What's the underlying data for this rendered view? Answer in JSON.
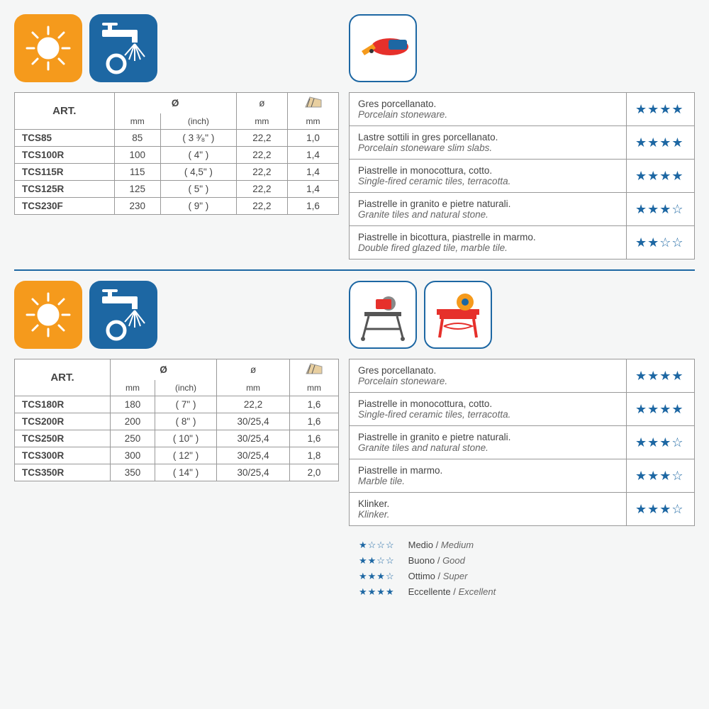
{
  "colors": {
    "orange": "#f59a1c",
    "blue": "#1d67a3",
    "border": "#999999",
    "bg": "#f5f6f6",
    "text": "#555555",
    "star": "#1d67a3"
  },
  "icons": {
    "sun": "sun-icon",
    "faucet": "faucet-wheel-icon",
    "grinder": "angle-grinder-icon",
    "table_saw": "table-saw-icon",
    "bench_saw": "bench-saw-icon"
  },
  "headers": {
    "art": "ART.",
    "diam_large": "Ø",
    "diam_small": "ø",
    "mm": "mm",
    "inch": "(inch)"
  },
  "section1": {
    "specs": [
      {
        "art": "TCS85",
        "mm": "85",
        "inch": "( 3 ³⁄₈\" )",
        "bore": "22,2",
        "thick": "1,0"
      },
      {
        "art": "TCS100R",
        "mm": "100",
        "inch": "(  4\"  )",
        "bore": "22,2",
        "thick": "1,4"
      },
      {
        "art": "TCS115R",
        "mm": "115",
        "inch": "( 4,5\" )",
        "bore": "22,2",
        "thick": "1,4"
      },
      {
        "art": "TCS125R",
        "mm": "125",
        "inch": "(  5\"  )",
        "bore": "22,2",
        "thick": "1,4"
      },
      {
        "art": "TCS230F",
        "mm": "230",
        "inch": "(  9\"  )",
        "bore": "22,2",
        "thick": "1,6"
      }
    ],
    "ratings": [
      {
        "it": "Gres porcellanato.",
        "en": "Porcelain stoneware.",
        "stars": 4
      },
      {
        "it": "Lastre sottili in gres porcellanato.",
        "en": "Porcelain stoneware slim slabs.",
        "stars": 4
      },
      {
        "it": "Piastrelle in monocottura, cotto.",
        "en": "Single-fired ceramic tiles, terracotta.",
        "stars": 4
      },
      {
        "it": "Piastrelle in granito e pietre naturali.",
        "en": "Granite tiles and natural stone.",
        "stars": 3
      },
      {
        "it": "Piastrelle in bicottura, piastrelle in marmo.",
        "en": "Double fired glazed tile, marble tile.",
        "stars": 2
      }
    ]
  },
  "section2": {
    "specs": [
      {
        "art": "TCS180R",
        "mm": "180",
        "inch": "(  7\"  )",
        "bore": "22,2",
        "thick": "1,6"
      },
      {
        "art": "TCS200R",
        "mm": "200",
        "inch": "(  8\"  )",
        "bore": "30/25,4",
        "thick": "1,6"
      },
      {
        "art": "TCS250R",
        "mm": "250",
        "inch": "( 10\" )",
        "bore": "30/25,4",
        "thick": "1,6"
      },
      {
        "art": "TCS300R",
        "mm": "300",
        "inch": "( 12\" )",
        "bore": "30/25,4",
        "thick": "1,8"
      },
      {
        "art": "TCS350R",
        "mm": "350",
        "inch": "( 14\" )",
        "bore": "30/25,4",
        "thick": "2,0"
      }
    ],
    "ratings": [
      {
        "it": "Gres porcellanato.",
        "en": "Porcelain stoneware.",
        "stars": 4
      },
      {
        "it": "Piastrelle in monocottura, cotto.",
        "en": "Single-fired ceramic tiles, terracotta.",
        "stars": 4
      },
      {
        "it": "Piastrelle in granito e pietre naturali.",
        "en": "Granite tiles and natural stone.",
        "stars": 3
      },
      {
        "it": "Piastrelle in marmo.",
        "en": "Marble tile.",
        "stars": 3
      },
      {
        "it": "Klinker.",
        "en": "Klinker.",
        "stars": 3
      }
    ]
  },
  "legend": [
    {
      "stars": 1,
      "it": "Medio",
      "en": "Medium"
    },
    {
      "stars": 2,
      "it": "Buono",
      "en": "Good"
    },
    {
      "stars": 3,
      "it": "Ottimo",
      "en": "Super"
    },
    {
      "stars": 4,
      "it": "Eccellente",
      "en": "Excellent"
    }
  ]
}
